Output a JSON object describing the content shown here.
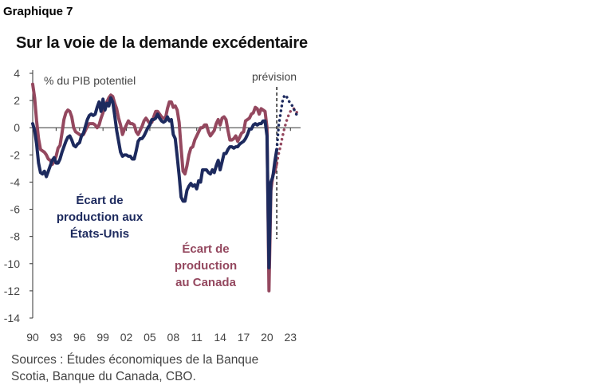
{
  "header": {
    "graph_label": "Graphique 7",
    "title": "Sur la voie de la demande excédentaire"
  },
  "sources": [
    "Sources : Études économiques de la Banque",
    "Scotia, Banque du Canada, CBO."
  ],
  "colors": {
    "us": "#1d2a5e",
    "canada": "#94485f",
    "axis": "#333333",
    "text": "#444444"
  },
  "chart_data": {
    "type": "line",
    "title": "Sur la voie de la demande excédentaire",
    "ylabel": "% du PIB potentiel",
    "xlabel": "",
    "ylim": [
      -14,
      4
    ],
    "xlim": [
      1990,
      2024.3
    ],
    "y_ticks": [
      "4",
      "2",
      "0",
      "-2",
      "-4",
      "-6",
      "-8",
      "-10",
      "-12",
      "-14"
    ],
    "x_ticks": [
      "90",
      "93",
      "96",
      "99",
      "02",
      "05",
      "08",
      "11",
      "14",
      "17",
      "20",
      "23"
    ],
    "forecast_label": "prévision",
    "forecast_start": 2021.25,
    "grid": false,
    "legend": "inline-labels",
    "series": [
      {
        "id": "us",
        "name": "Écart de production aux États-Unis",
        "label_lines": [
          "Écart de",
          "production aux",
          "États-Unis"
        ],
        "actual": [
          [
            1990.0,
            0.3
          ],
          [
            1990.25,
            -0.2
          ],
          [
            1990.5,
            -1.2
          ],
          [
            1990.75,
            -2.6
          ],
          [
            1991.0,
            -3.3
          ],
          [
            1991.25,
            -3.4
          ],
          [
            1991.5,
            -3.2
          ],
          [
            1991.75,
            -3.6
          ],
          [
            1992.0,
            -3.2
          ],
          [
            1992.25,
            -2.8
          ],
          [
            1992.5,
            -2.4
          ],
          [
            1992.75,
            -2.2
          ],
          [
            1993.0,
            -2.6
          ],
          [
            1993.25,
            -2.6
          ],
          [
            1993.5,
            -2.3
          ],
          [
            1993.75,
            -1.8
          ],
          [
            1994.0,
            -1.4
          ],
          [
            1994.25,
            -1.0
          ],
          [
            1994.5,
            -0.7
          ],
          [
            1994.75,
            -0.6
          ],
          [
            1995.0,
            -0.9
          ],
          [
            1995.25,
            -1.3
          ],
          [
            1995.5,
            -1.4
          ],
          [
            1995.75,
            -1.2
          ],
          [
            1996.0,
            -1.1
          ],
          [
            1996.25,
            -0.6
          ],
          [
            1996.5,
            -0.4
          ],
          [
            1996.75,
            0.1
          ],
          [
            1997.0,
            0.6
          ],
          [
            1997.25,
            0.9
          ],
          [
            1997.5,
            1.0
          ],
          [
            1997.75,
            0.9
          ],
          [
            1998.0,
            1.0
          ],
          [
            1998.25,
            1.5
          ],
          [
            1998.5,
            1.9
          ],
          [
            1998.75,
            1.2
          ],
          [
            1999.0,
            2.1
          ],
          [
            1999.25,
            1.3
          ],
          [
            1999.5,
            1.8
          ],
          [
            1999.75,
            1.6
          ],
          [
            2000.0,
            2.2
          ],
          [
            2000.25,
            1.9
          ],
          [
            2000.5,
            0.9
          ],
          [
            2000.75,
            -0.2
          ],
          [
            2001.0,
            -1.0
          ],
          [
            2001.25,
            -1.8
          ],
          [
            2001.5,
            -2.1
          ],
          [
            2001.75,
            -2.0
          ],
          [
            2002.0,
            -2.0
          ],
          [
            2002.25,
            -2.1
          ],
          [
            2002.5,
            -2.1
          ],
          [
            2002.75,
            -2.3
          ],
          [
            2003.0,
            -2.3
          ],
          [
            2003.25,
            -1.7
          ],
          [
            2003.5,
            -1.0
          ],
          [
            2003.75,
            -0.8
          ],
          [
            2004.0,
            -0.8
          ],
          [
            2004.25,
            -0.6
          ],
          [
            2004.5,
            -0.3
          ],
          [
            2004.75,
            0.0
          ],
          [
            2005.0,
            0.2
          ],
          [
            2005.25,
            0.6
          ],
          [
            2005.5,
            0.6
          ],
          [
            2005.75,
            0.7
          ],
          [
            2006.0,
            1.0
          ],
          [
            2006.25,
            0.7
          ],
          [
            2006.5,
            0.5
          ],
          [
            2006.75,
            0.4
          ],
          [
            2007.0,
            0.5
          ],
          [
            2007.25,
            0.8
          ],
          [
            2007.5,
            0.5
          ],
          [
            2007.75,
            0.6
          ],
          [
            2008.0,
            -0.5
          ],
          [
            2008.25,
            -0.8
          ],
          [
            2008.5,
            -2.1
          ],
          [
            2008.75,
            -3.5
          ],
          [
            2009.0,
            -5.1
          ],
          [
            2009.25,
            -5.4
          ],
          [
            2009.5,
            -5.4
          ],
          [
            2009.75,
            -4.6
          ],
          [
            2010.0,
            -4.3
          ],
          [
            2010.25,
            -4.1
          ],
          [
            2010.5,
            -4.3
          ],
          [
            2010.75,
            -4.2
          ],
          [
            2011.0,
            -4.5
          ],
          [
            2011.25,
            -3.9
          ],
          [
            2011.5,
            -4.0
          ],
          [
            2011.75,
            -3.1
          ],
          [
            2012.0,
            -3.1
          ],
          [
            2012.25,
            -3.1
          ],
          [
            2012.5,
            -3.3
          ],
          [
            2012.75,
            -3.4
          ],
          [
            2013.0,
            -3.1
          ],
          [
            2013.25,
            -3.3
          ],
          [
            2013.5,
            -2.8
          ],
          [
            2013.75,
            -2.4
          ],
          [
            2014.0,
            -3.1
          ],
          [
            2014.25,
            -2.5
          ],
          [
            2014.5,
            -1.9
          ],
          [
            2014.75,
            -1.9
          ],
          [
            2015.0,
            -1.6
          ],
          [
            2015.25,
            -1.4
          ],
          [
            2015.5,
            -1.4
          ],
          [
            2015.75,
            -1.5
          ],
          [
            2016.0,
            -1.4
          ],
          [
            2016.25,
            -1.4
          ],
          [
            2016.5,
            -1.2
          ],
          [
            2016.75,
            -1.1
          ],
          [
            2017.0,
            -1.0
          ],
          [
            2017.25,
            -0.8
          ],
          [
            2017.5,
            -0.5
          ],
          [
            2017.75,
            -0.1
          ],
          [
            2018.0,
            -0.1
          ],
          [
            2018.25,
            0.2
          ],
          [
            2018.5,
            0.3
          ],
          [
            2018.75,
            0.2
          ],
          [
            2019.0,
            0.3
          ],
          [
            2019.25,
            0.3
          ],
          [
            2019.5,
            0.5
          ],
          [
            2019.75,
            0.5
          ],
          [
            2020.0,
            -0.6
          ],
          [
            2020.25,
            -10.3
          ],
          [
            2020.5,
            -4.0
          ],
          [
            2020.75,
            -3.6
          ],
          [
            2021.0,
            -2.5
          ],
          [
            2021.25,
            -1.6
          ]
        ],
        "forecast": [
          [
            2021.25,
            -1.6
          ],
          [
            2021.5,
            0.2
          ],
          [
            2021.75,
            1.1
          ],
          [
            2022.0,
            2.0
          ],
          [
            2022.25,
            2.4
          ],
          [
            2022.5,
            2.3
          ],
          [
            2022.75,
            2.0
          ],
          [
            2023.0,
            1.8
          ],
          [
            2023.25,
            1.6
          ],
          [
            2023.5,
            1.3
          ],
          [
            2023.75,
            1.0
          ],
          [
            2024.0,
            0.8
          ]
        ]
      },
      {
        "id": "canada",
        "name": "Écart de production au Canada",
        "label_lines": [
          "Écart de",
          "production",
          "au Canada"
        ],
        "actual": [
          [
            1990.0,
            3.2
          ],
          [
            1990.25,
            2.2
          ],
          [
            1990.5,
            0.5
          ],
          [
            1990.75,
            -0.8
          ],
          [
            1991.0,
            -1.6
          ],
          [
            1991.25,
            -1.7
          ],
          [
            1991.5,
            -1.8
          ],
          [
            1991.75,
            -2.0
          ],
          [
            1992.0,
            -2.3
          ],
          [
            1992.25,
            -2.4
          ],
          [
            1992.5,
            -2.7
          ],
          [
            1992.75,
            -2.5
          ],
          [
            1993.0,
            -2.1
          ],
          [
            1993.25,
            -1.5
          ],
          [
            1993.5,
            -1.3
          ],
          [
            1993.75,
            -0.4
          ],
          [
            1994.0,
            0.6
          ],
          [
            1994.25,
            1.1
          ],
          [
            1994.5,
            1.3
          ],
          [
            1994.75,
            1.2
          ],
          [
            1995.0,
            0.8
          ],
          [
            1995.25,
            0.0
          ],
          [
            1995.5,
            -0.3
          ],
          [
            1995.75,
            -0.4
          ],
          [
            1996.0,
            -0.5
          ],
          [
            1996.25,
            -0.6
          ],
          [
            1996.5,
            -0.5
          ],
          [
            1996.75,
            -0.2
          ],
          [
            1997.0,
            0.1
          ],
          [
            1997.25,
            0.3
          ],
          [
            1997.5,
            0.3
          ],
          [
            1997.75,
            0.3
          ],
          [
            1998.0,
            0.2
          ],
          [
            1998.25,
            0.0
          ],
          [
            1998.5,
            0.2
          ],
          [
            1998.75,
            0.7
          ],
          [
            1999.0,
            1.1
          ],
          [
            1999.25,
            1.6
          ],
          [
            1999.5,
            1.9
          ],
          [
            1999.75,
            2.2
          ],
          [
            2000.0,
            2.4
          ],
          [
            2000.25,
            2.3
          ],
          [
            2000.5,
            1.8
          ],
          [
            2000.75,
            1.4
          ],
          [
            2001.0,
            0.7
          ],
          [
            2001.25,
            0.2
          ],
          [
            2001.5,
            -0.5
          ],
          [
            2001.75,
            -0.1
          ],
          [
            2002.0,
            0.2
          ],
          [
            2002.25,
            0.5
          ],
          [
            2002.5,
            0.3
          ],
          [
            2002.75,
            0.3
          ],
          [
            2003.0,
            0.2
          ],
          [
            2003.25,
            -0.3
          ],
          [
            2003.5,
            -0.5
          ],
          [
            2003.75,
            -0.2
          ],
          [
            2004.0,
            0.1
          ],
          [
            2004.25,
            0.5
          ],
          [
            2004.5,
            0.7
          ],
          [
            2004.75,
            0.5
          ],
          [
            2005.0,
            0.3
          ],
          [
            2005.25,
            0.4
          ],
          [
            2005.5,
            0.8
          ],
          [
            2005.75,
            1.2
          ],
          [
            2006.0,
            1.2
          ],
          [
            2006.25,
            1.0
          ],
          [
            2006.5,
            0.8
          ],
          [
            2006.75,
            0.7
          ],
          [
            2007.0,
            0.7
          ],
          [
            2007.25,
            1.4
          ],
          [
            2007.5,
            1.9
          ],
          [
            2007.75,
            1.9
          ],
          [
            2008.0,
            1.5
          ],
          [
            2008.25,
            1.6
          ],
          [
            2008.5,
            1.3
          ],
          [
            2008.75,
            0.4
          ],
          [
            2009.0,
            -1.5
          ],
          [
            2009.25,
            -3.2
          ],
          [
            2009.5,
            -3.4
          ],
          [
            2009.75,
            -2.8
          ],
          [
            2010.0,
            -2.0
          ],
          [
            2010.25,
            -1.5
          ],
          [
            2010.5,
            -1.4
          ],
          [
            2010.75,
            -0.9
          ],
          [
            2011.0,
            -0.6
          ],
          [
            2011.25,
            -0.3
          ],
          [
            2011.5,
            0.0
          ],
          [
            2011.75,
            0.0
          ],
          [
            2012.0,
            0.2
          ],
          [
            2012.25,
            0.2
          ],
          [
            2012.5,
            -0.3
          ],
          [
            2012.75,
            -0.6
          ],
          [
            2013.0,
            -0.4
          ],
          [
            2013.25,
            -0.2
          ],
          [
            2013.5,
            0.3
          ],
          [
            2013.75,
            0.6
          ],
          [
            2014.0,
            0.2
          ],
          [
            2014.25,
            0.7
          ],
          [
            2014.5,
            0.8
          ],
          [
            2014.75,
            0.6
          ],
          [
            2015.0,
            -0.2
          ],
          [
            2015.25,
            -0.9
          ],
          [
            2015.5,
            -0.9
          ],
          [
            2015.75,
            -0.8
          ],
          [
            2016.0,
            -0.6
          ],
          [
            2016.25,
            -1.0
          ],
          [
            2016.5,
            -0.7
          ],
          [
            2016.75,
            -0.4
          ],
          [
            2017.0,
            -0.3
          ],
          [
            2017.25,
            0.5
          ],
          [
            2017.5,
            0.6
          ],
          [
            2017.75,
            0.7
          ],
          [
            2018.0,
            1.0
          ],
          [
            2018.25,
            1.1
          ],
          [
            2018.5,
            1.5
          ],
          [
            2018.75,
            1.4
          ],
          [
            2019.0,
            1.0
          ],
          [
            2019.25,
            1.4
          ],
          [
            2019.5,
            1.3
          ],
          [
            2019.75,
            1.2
          ],
          [
            2020.0,
            0.0
          ],
          [
            2020.25,
            -12.0
          ],
          [
            2020.5,
            -4.6
          ],
          [
            2020.75,
            -3.5
          ],
          [
            2021.0,
            -3.2
          ],
          [
            2021.25,
            -2.6
          ]
        ],
        "forecast": [
          [
            2021.25,
            -2.6
          ],
          [
            2021.5,
            -1.9
          ],
          [
            2021.75,
            -1.3
          ],
          [
            2022.0,
            -0.6
          ],
          [
            2022.25,
            0.0
          ],
          [
            2022.5,
            0.5
          ],
          [
            2022.75,
            0.9
          ],
          [
            2023.0,
            1.2
          ],
          [
            2023.25,
            1.4
          ],
          [
            2023.5,
            1.4
          ],
          [
            2023.75,
            1.2
          ],
          [
            2024.0,
            0.9
          ]
        ]
      }
    ]
  }
}
